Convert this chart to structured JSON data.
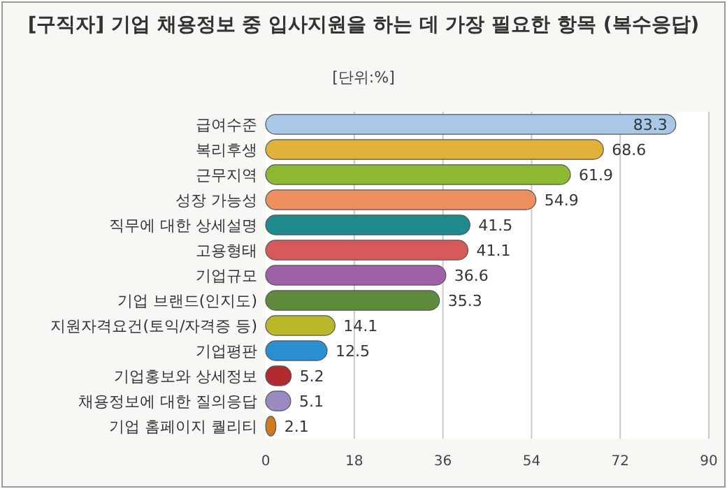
{
  "chart_data": {
    "type": "bar",
    "orientation": "horizontal",
    "title": "[구직자] 기업 채용정보 중 입사지원을 하는 데 가장 필요한 항목 (복수응답)",
    "subtitle": "[단위:%]",
    "categories": [
      "급여수준",
      "복리후생",
      "근무지역",
      "성장 가능성",
      "직무에 대한 상세설명",
      "고용형태",
      "기업규모",
      "기업 브랜드(인지도)",
      "지원자격요건(토익/자격증 등)",
      "기업평판",
      "기업홍보와 상세정보",
      "채용정보에 대한 질의응답",
      "기업 홈페이지 퀄리티"
    ],
    "values": [
      83.3,
      68.6,
      61.9,
      54.9,
      41.5,
      41.1,
      36.6,
      35.3,
      14.1,
      12.5,
      5.2,
      5.1,
      2.1
    ],
    "colors": [
      "#a9c8e8",
      "#e0b23a",
      "#8cb832",
      "#ee8f5e",
      "#1f8a8e",
      "#d65a5a",
      "#a060a8",
      "#5e8a3c",
      "#b8b82a",
      "#2a8fd0",
      "#b02a30",
      "#9a8ac0",
      "#d07a20"
    ],
    "xlim": [
      0,
      90
    ],
    "xticks": [
      0,
      18,
      36,
      54,
      72,
      90
    ],
    "grid": "x",
    "data_labels": true
  }
}
